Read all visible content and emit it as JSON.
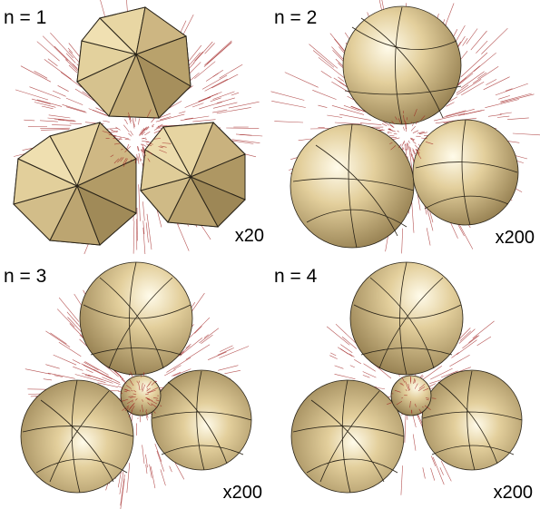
{
  "panels": [
    {
      "label": "n = 1",
      "scale": "x20"
    },
    {
      "label": "n = 2",
      "scale": "x200"
    },
    {
      "label": "n = 3",
      "scale": "x200"
    },
    {
      "label": "n = 4",
      "scale": "x200"
    }
  ],
  "colors": {
    "surface_highlight": "#fffbea",
    "surface_base": "#d9c48f",
    "surface_shadow": "#8c7648",
    "edge": "#2a2418",
    "vectors": "#9e1b1b",
    "vertex": "#9ccf7a"
  }
}
